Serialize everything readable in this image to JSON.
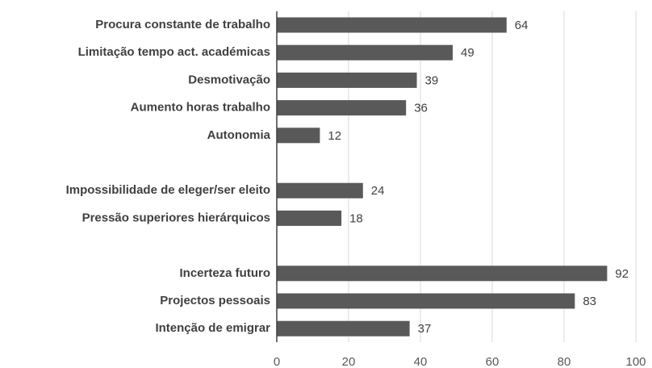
{
  "chart_data": {
    "type": "bar",
    "orientation": "horizontal",
    "categories": [
      "Procura constante de trabalho",
      "Limitação tempo act. académicas",
      "Desmotivação",
      "Aumento horas trabalho",
      "Autonomia",
      null,
      "Impossibilidade de eleger/ser eleito",
      "Pressão superiores hierárquicos",
      null,
      "Incerteza futuro",
      "Projectos pessoais",
      "Intenção de emigrar"
    ],
    "values": [
      64,
      49,
      39,
      36,
      12,
      null,
      24,
      18,
      null,
      92,
      83,
      37
    ],
    "color": "#595959",
    "xlim": [
      0,
      100
    ],
    "xticks": [
      0,
      20,
      40,
      60,
      80,
      100
    ],
    "grid": true
  }
}
